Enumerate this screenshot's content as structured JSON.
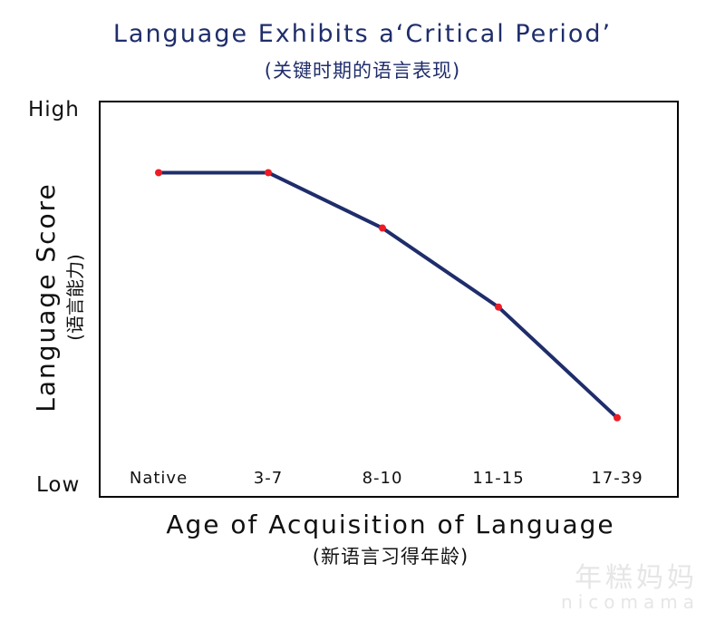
{
  "chart_data": {
    "type": "line",
    "title": "Language Exhibits a‘Critical Period’",
    "subtitle": "(关键时期的语言表现)",
    "xlabel": "Age of Acquisition of Language",
    "xlabel_sub": "(新语言习得年龄)",
    "ylabel": "Language Score",
    "ylabel_sub": "(语言能力)",
    "y_tick_high": "High",
    "y_tick_low": "Low",
    "categories": [
      "Native",
      "3-7",
      "8-10",
      "11-15",
      "17-39"
    ],
    "series": [
      {
        "values": [
          0.82,
          0.82,
          0.68,
          0.48,
          0.2
        ]
      }
    ],
    "ylim": [
      0,
      1
    ],
    "grid": false,
    "line_color": "#1f2d6b",
    "marker_color": "#ee1c24"
  },
  "watermark": {
    "cn": "年糕妈妈",
    "en": "nicomama"
  }
}
